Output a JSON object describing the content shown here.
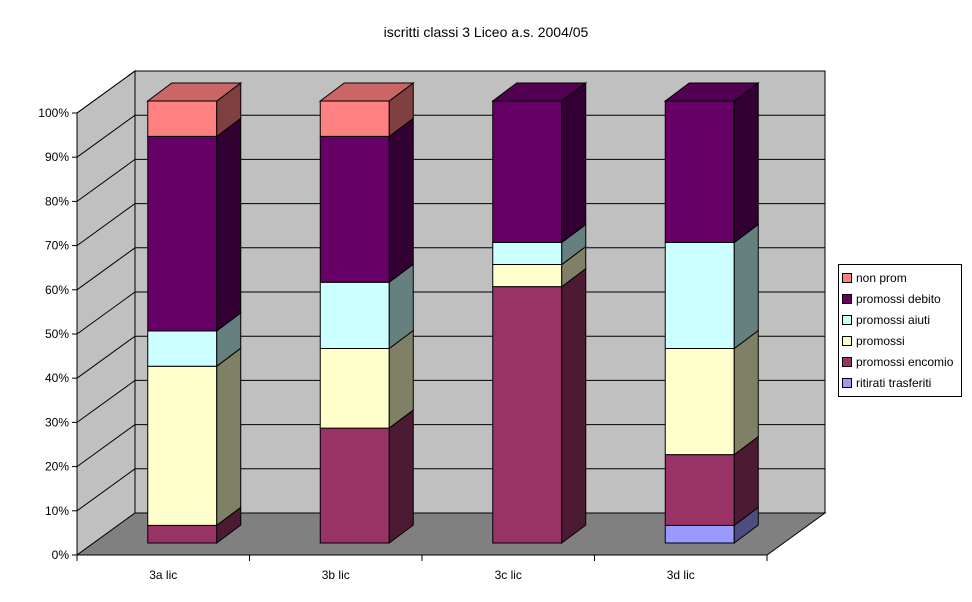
{
  "chart_data": {
    "type": "bar",
    "stacked": "100%",
    "style": "3d-column",
    "title": "iscritti classi 3 Liceo a.s. 2004/05",
    "xlabel": "",
    "ylabel": "",
    "ylim": [
      0,
      100
    ],
    "y_ticks": [
      "0%",
      "10%",
      "20%",
      "30%",
      "40%",
      "50%",
      "60%",
      "70%",
      "80%",
      "90%",
      "100%"
    ],
    "categories": [
      "3a lic",
      "3b lic",
      "3c lic",
      "3d lic"
    ],
    "grid": true,
    "legend_position": "right",
    "series": [
      {
        "name": "ritirati trasferiti",
        "color": "#9999ff",
        "side_color": "#4d4d80",
        "top_color": "#7a7acc",
        "values": [
          0,
          0,
          0,
          4
        ]
      },
      {
        "name": "promossi encomio",
        "color": "#993366",
        "side_color": "#4d1a33",
        "top_color": "#7a2952",
        "values": [
          4,
          26,
          58,
          16
        ]
      },
      {
        "name": "promossi",
        "color": "#ffffcc",
        "side_color": "#808066",
        "top_color": "#cccca3",
        "values": [
          36,
          18,
          5,
          24
        ]
      },
      {
        "name": "promossi aiuti",
        "color": "#ccffff",
        "side_color": "#668080",
        "top_color": "#a3cccc",
        "values": [
          8,
          15,
          5,
          24
        ]
      },
      {
        "name": "promossi debito",
        "color": "#660066",
        "side_color": "#330033",
        "top_color": "#520052",
        "values": [
          44,
          33,
          32,
          32
        ]
      },
      {
        "name": "non prom",
        "color": "#ff8080",
        "side_color": "#804040",
        "top_color": "#cc6666",
        "values": [
          8,
          8,
          0,
          0
        ]
      }
    ]
  },
  "legend_order": [
    "non prom",
    "promossi debito",
    "promossi aiuti",
    "promossi",
    "promossi encomio",
    "ritirati trasferiti"
  ],
  "colors": {
    "wall": "#c0c0c0",
    "floor": "#808080",
    "side_wall": "#c0c0c0"
  }
}
